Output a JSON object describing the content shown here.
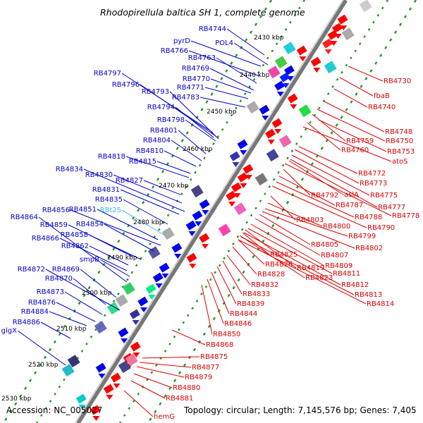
{
  "title": "Rhodopirellula baltica SH 1, complete genome",
  "accession": "Accession: NC_005027",
  "summary": "Topology: circular; Length: 7,145,576 bp; Genes: 7,405",
  "colors": {
    "left_labels": "#0000cc",
    "right_labels": "#dd0000",
    "rna_label": "#33bbee",
    "backbone": "#777777",
    "tick_dots": "#229922"
  },
  "scale_labels": [
    "2430 kbp",
    "2440 kbp",
    "2450 kbp",
    "2460 kbp",
    "2470 kbp",
    "2480 kbp",
    "2490 kbp",
    "2500 kbp",
    "2510 kbp",
    "2520 kbp",
    "2530 kbp"
  ],
  "left_genes": [
    "RB4744",
    "pyrD",
    "POL4",
    "RB4766",
    "RB4763",
    "RB4769",
    "RB4770",
    "RB4797",
    "RB4796",
    "RB4771",
    "RB4793",
    "RB4783",
    "RB4794",
    "RB4798",
    "RB4801",
    "RB4804",
    "RB4810",
    "RB4818",
    "RB4815",
    "RB4834",
    "RB4830",
    "RB4827",
    "RB4831",
    "RB4835",
    "RBt25",
    "RB4856",
    "RB4851",
    "RB4864",
    "RB4859",
    "RB4854",
    "RB4858",
    "RB4866",
    "RB4862",
    "smpB",
    "RB4872",
    "RB4869",
    "RB4870",
    "RB4873",
    "RB4876",
    "RB4884",
    "RB4886",
    "glgX"
  ],
  "right_genes": [
    "RB4730",
    "fbaB",
    "RB4740",
    "RB4748",
    "RB4750",
    "RB4759",
    "RB4753",
    "RB4760",
    "atoS",
    "RB4772",
    "RB4773",
    "RB4792",
    "aslA",
    "RB4775",
    "RB4787",
    "RB4777",
    "RB4788",
    "RB4778",
    "RB4803",
    "RB4790",
    "RB4800",
    "RB4799",
    "RB4805",
    "RB4802",
    "RB4825",
    "RB4807",
    "RB4826",
    "RB4809",
    "RB4819",
    "RB4811",
    "RB4828",
    "RB4823",
    "RB4832",
    "RB4812",
    "RB4833",
    "RB4813",
    "RB4839",
    "RB4814",
    "RB4844",
    "RB4846",
    "RB4850",
    "RB4868",
    "RB4875",
    "RB4877",
    "RB4879",
    "RB4880",
    "RB4881",
    "hemG"
  ]
}
